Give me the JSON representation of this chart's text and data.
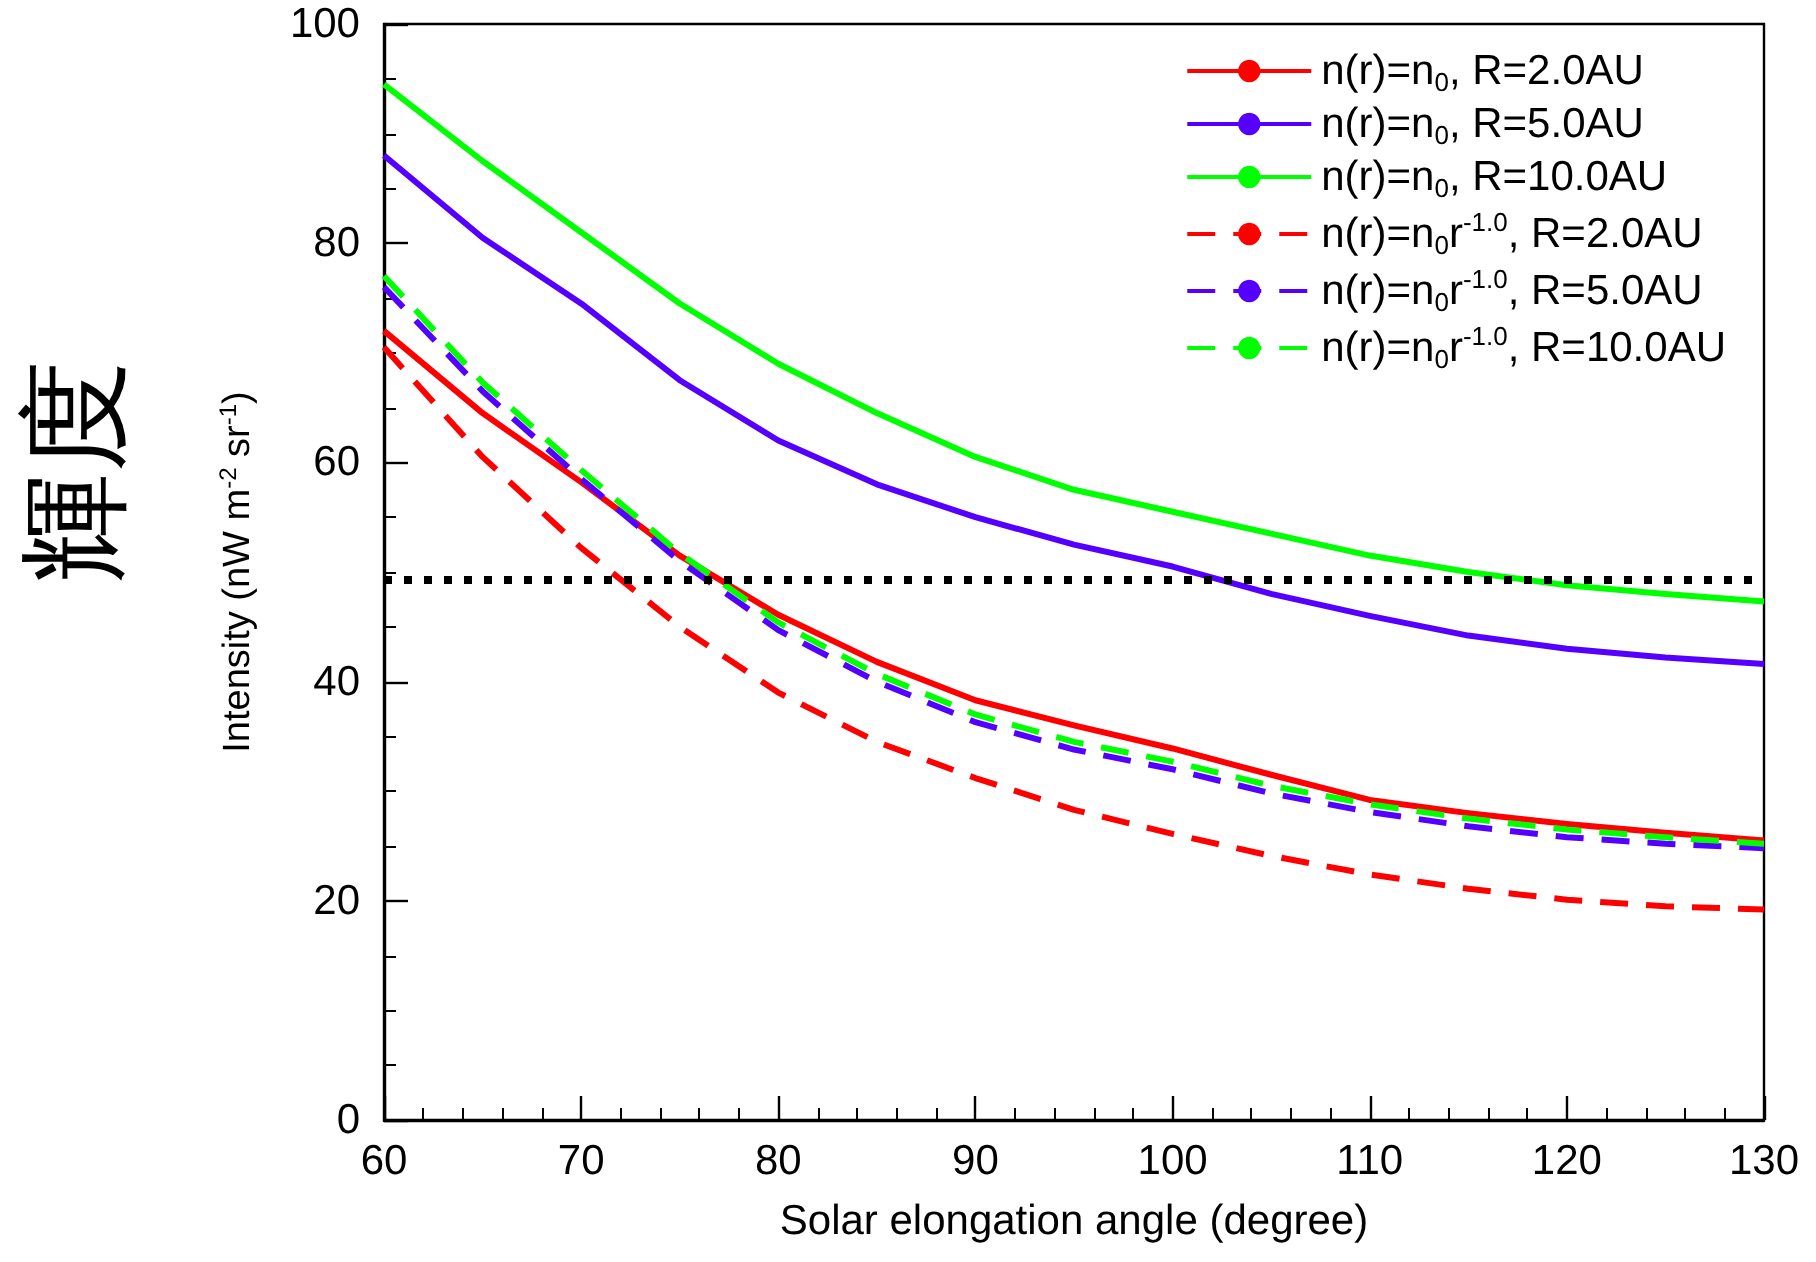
{
  "chart_data": {
    "type": "line",
    "xlabel": "Solar elongation angle (degree)",
    "ylabel": "Intensity (nW m$^{-2}$ sr$^{-1}$)",
    "annotations": [
      "輝度"
    ],
    "x": [
      60,
      65,
      70,
      75,
      80,
      85,
      90,
      95,
      100,
      105,
      110,
      115,
      120,
      125,
      130
    ],
    "series": [
      {
        "name": "n(r)=n$_{0}$, R=2.0AU",
        "color": "#ff0000",
        "line_style": "solid",
        "values": [
          72,
          64.5,
          58.2,
          51.5,
          46.1,
          41.8,
          38.3,
          36,
          33.9,
          31.5,
          29.2,
          28,
          27,
          26.2,
          25.5
        ]
      },
      {
        "name": "n(r)=n$_{0}$, R=5.0AU",
        "color": "#5500ff",
        "line_style": "solid",
        "values": [
          88,
          80.5,
          74.5,
          67.5,
          62,
          58,
          55,
          52.5,
          50.5,
          48,
          46,
          44.2,
          43,
          42.2,
          41.6
        ]
      },
      {
        "name": "n(r)=n$_{0}$, R=10.0AU",
        "color": "#00ff00",
        "line_style": "solid",
        "values": [
          94.5,
          87.5,
          81,
          74.5,
          69,
          64.5,
          60.5,
          57.5,
          55.5,
          53.5,
          51.5,
          50,
          48.8,
          48,
          47.3
        ]
      },
      {
        "name": "n(r)=n$_{0}$r$^{-1.0}$, R=2.0AU",
        "color": "#ff0000",
        "line_style": "dashed",
        "values": [
          70.5,
          60.5,
          52.2,
          45,
          39,
          34.5,
          31.2,
          28.3,
          26.1,
          24.1,
          22.4,
          21.1,
          20.1,
          19.5,
          19.2
        ]
      },
      {
        "name": "n(r)=n$_{0}$r$^{-1.0}$, R=5.0AU",
        "color": "#5500ff",
        "line_style": "dashed",
        "values": [
          76,
          66.5,
          58.5,
          51,
          44.7,
          40,
          36.3,
          33.8,
          32,
          29.8,
          28.1,
          26.8,
          25.8,
          25.2,
          24.8
        ]
      },
      {
        "name": "n(r)=n$_{0}$r$^{-1.0}$, R=10.0AU",
        "color": "#00ff00",
        "line_style": "dashed",
        "values": [
          77,
          67.3,
          59.3,
          51.7,
          45.4,
          40.7,
          37,
          34.5,
          32.7,
          30.5,
          28.8,
          27.5,
          26.5,
          25.8,
          25.2
        ]
      }
    ],
    "xlim": [
      60,
      130
    ],
    "xticks": [
      60,
      70,
      80,
      90,
      100,
      110,
      120,
      130
    ],
    "ylim": [
      0,
      100
    ],
    "yticks": [
      0,
      20,
      40,
      60,
      80,
      100
    ],
    "ref_lines": [
      {
        "axis": "y",
        "value": 49.3,
        "color": "#000000",
        "line_style": "dotted"
      }
    ],
    "grid": false,
    "legend": "top right",
    "marker": "none"
  }
}
